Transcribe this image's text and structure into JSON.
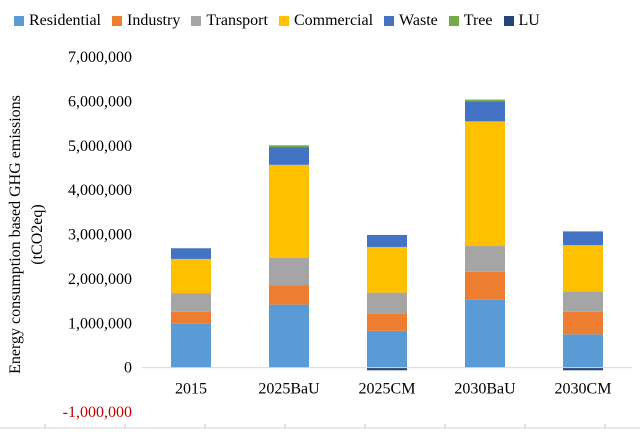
{
  "chart_data": {
    "type": "bar",
    "stacked": true,
    "title": "",
    "xlabel": "",
    "ylabel": "Energy consumption based GHG emissions (tCO2eq)",
    "ylabel_lines": [
      "Energy consumption based GHG emissions",
      "(tCO2eq)"
    ],
    "ylim": [
      -1000000,
      7000000
    ],
    "yticks": [
      -1000000,
      0,
      1000000,
      2000000,
      3000000,
      4000000,
      5000000,
      6000000,
      7000000
    ],
    "ytick_labels": [
      "-1,000,000",
      "0",
      "1,000,000",
      "2,000,000",
      "3,000,000",
      "4,000,000",
      "5,000,000",
      "6,000,000",
      "7,000,000"
    ],
    "negative_tick_color": "#c00000",
    "grid": false,
    "legend_position": "top",
    "categories": [
      "2015",
      "2025BaU",
      "2025CM",
      "2030BaU",
      "2030CM"
    ],
    "series": [
      {
        "name": "Residential",
        "color": "#5b9bd5",
        "values": [
          1000000,
          1420000,
          830000,
          1540000,
          750000
        ]
      },
      {
        "name": "Industry",
        "color": "#ed7d31",
        "values": [
          260000,
          430000,
          380000,
          620000,
          510000
        ]
      },
      {
        "name": "Transport",
        "color": "#a5a5a5",
        "values": [
          420000,
          620000,
          480000,
          580000,
          460000
        ]
      },
      {
        "name": "Commercial",
        "color": "#ffc000",
        "values": [
          770000,
          2100000,
          1030000,
          2810000,
          1040000
        ]
      },
      {
        "name": "Waste",
        "color": "#4472c4",
        "values": [
          240000,
          400000,
          270000,
          450000,
          310000
        ]
      },
      {
        "name": "Tree",
        "color": "#70ad47",
        "values": [
          0,
          40000,
          0,
          40000,
          0
        ]
      },
      {
        "name": "LU",
        "color": "#264478",
        "values": [
          0,
          0,
          -60000,
          0,
          -60000
        ]
      }
    ]
  }
}
